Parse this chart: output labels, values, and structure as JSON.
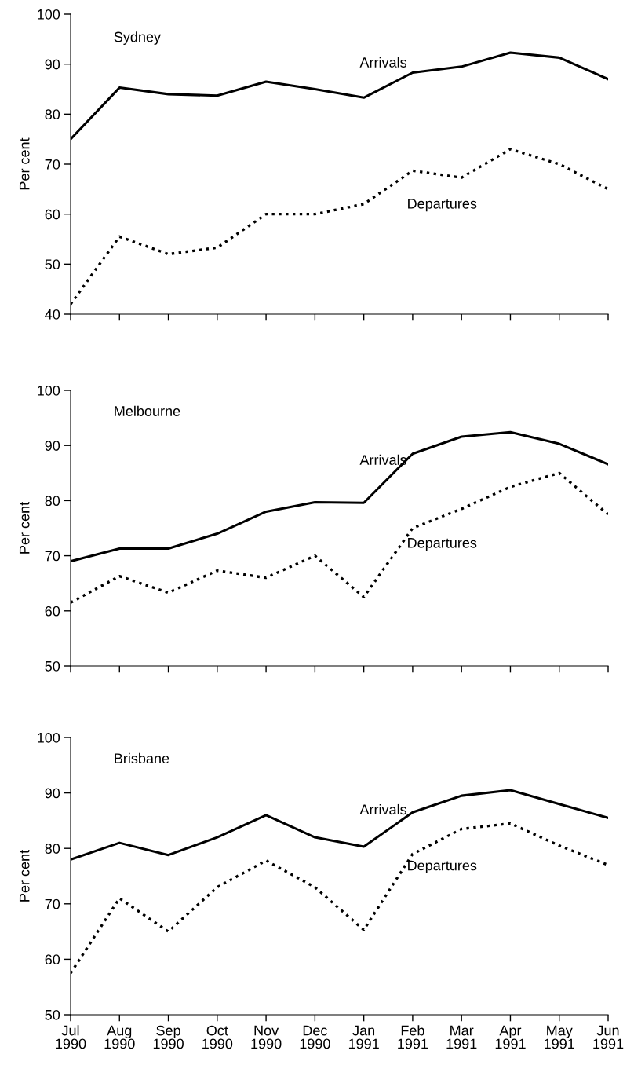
{
  "chart_data": [
    {
      "type": "line",
      "title": "Sydney",
      "ylabel": "Per cent",
      "categories": [
        null,
        null,
        null,
        null,
        null,
        null,
        null,
        null,
        null,
        null,
        null,
        null
      ],
      "series": [
        {
          "name": "Arrivals",
          "color": "#000000",
          "line_style": "solid",
          "values": [
            75,
            85.3,
            84,
            83.7,
            86.5,
            85,
            83.3,
            88.3,
            89.5,
            92.3,
            91.3,
            87
          ]
        },
        {
          "name": "Departures",
          "color": "#000000",
          "line_style": "dotted",
          "values": [
            42,
            55.5,
            52,
            53.3,
            60,
            60,
            62,
            68.7,
            67.3,
            73,
            70,
            65
          ]
        }
      ],
      "ylim": [
        40,
        100
      ],
      "yticks": [
        40,
        50,
        60,
        70,
        80,
        90,
        100
      ],
      "tick_labels": "y",
      "grid": false,
      "legend": false,
      "marker": "none"
    },
    {
      "type": "line",
      "title": "Melbourne",
      "ylabel": "Per cent",
      "categories": [
        null,
        null,
        null,
        null,
        null,
        null,
        null,
        null,
        null,
        null,
        null,
        null
      ],
      "series": [
        {
          "name": "Arrivals",
          "color": "#000000",
          "line_style": "solid",
          "values": [
            69,
            71.3,
            71.3,
            74,
            78,
            79.7,
            79.6,
            88.5,
            91.6,
            92.4,
            90.3,
            86.6
          ]
        },
        {
          "name": "Departures",
          "color": "#000000",
          "line_style": "dotted",
          "values": [
            61.5,
            66.3,
            63.3,
            67.3,
            66,
            70,
            62.5,
            75,
            78.5,
            82.5,
            85,
            77.5
          ]
        }
      ],
      "ylim": [
        50,
        100
      ],
      "yticks": [
        50,
        60,
        70,
        80,
        90,
        100
      ],
      "tick_labels": "y",
      "grid": false,
      "legend": false,
      "marker": "none"
    },
    {
      "type": "line",
      "title": "Brisbane",
      "ylabel": "Per cent",
      "categories": [
        "Jul\n1990",
        "Aug\n1990",
        "Sep\n1990",
        "Oct\n1990",
        "Nov\n1990",
        "Dec\n1990",
        "Jan\n1991",
        "Feb\n1991",
        "Mar\n1991",
        "Apr\n1991",
        "May\n1991",
        "Jun\n1991"
      ],
      "series": [
        {
          "name": "Arrivals",
          "color": "#000000",
          "line_style": "solid",
          "values": [
            78,
            81,
            78.8,
            82,
            86,
            82,
            80.3,
            86.5,
            89.5,
            90.5,
            88,
            85.5
          ]
        },
        {
          "name": "Departures",
          "color": "#000000",
          "line_style": "dotted",
          "values": [
            57.5,
            71,
            65,
            73,
            77.8,
            73,
            65.3,
            79,
            83.5,
            84.5,
            80.5,
            77
          ]
        }
      ],
      "ylim": [
        50,
        100
      ],
      "yticks": [
        50,
        60,
        70,
        80,
        90,
        100
      ],
      "grid": false,
      "legend": false,
      "marker": "none"
    }
  ]
}
